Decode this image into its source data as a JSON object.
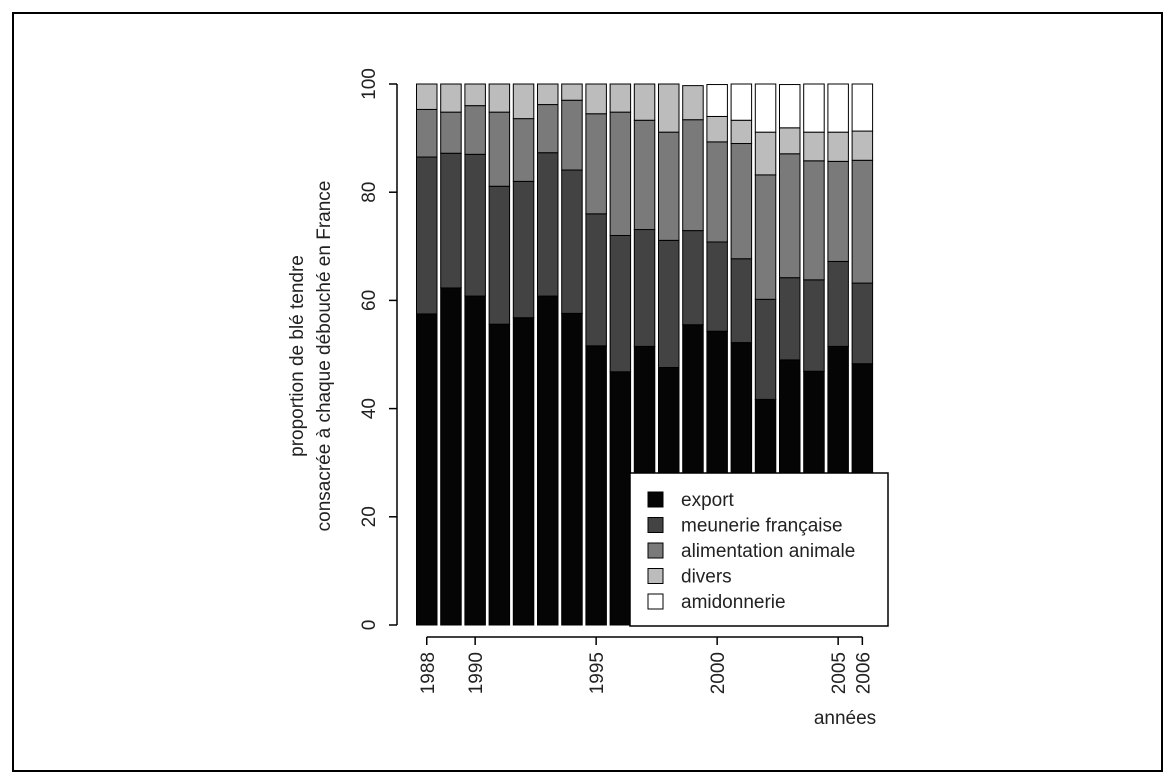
{
  "chart_data": {
    "type": "bar",
    "stacked": true,
    "x": [
      1988,
      1989,
      1990,
      1991,
      1992,
      1993,
      1994,
      1995,
      1996,
      1997,
      1998,
      1999,
      2000,
      2001,
      2002,
      2003,
      2004,
      2005,
      2006
    ],
    "x_tick_labels": [
      "1988",
      "1990",
      "1995",
      "2000",
      "2005",
      "2006"
    ],
    "x_tick_years": [
      1988,
      1990,
      1995,
      2000,
      2005,
      2006
    ],
    "xlabel": "années",
    "ylabel_line1": "proportion de blé tendre",
    "ylabel_line2": "consacrée à chaque débouché en France",
    "ylim": [
      0,
      100
    ],
    "y_ticks": [
      0,
      20,
      40,
      60,
      80,
      100
    ],
    "legend_position": "bottom-right",
    "series": [
      {
        "name": "export",
        "color": "#050505",
        "values": [
          57.5,
          62.3,
          60.8,
          55.6,
          56.8,
          60.8,
          57.6,
          51.6,
          46.8,
          51.5,
          47.6,
          55.5,
          54.3,
          52.2,
          41.7,
          49.0,
          46.9,
          51.5,
          48.3
        ]
      },
      {
        "name": "meunerie française",
        "color": "#434343",
        "values": [
          29.0,
          24.9,
          26.2,
          25.5,
          25.2,
          26.5,
          26.5,
          24.4,
          25.2,
          21.6,
          23.5,
          17.4,
          16.5,
          15.5,
          18.5,
          15.2,
          16.9,
          15.7,
          14.9
        ]
      },
      {
        "name": "alimentation animale",
        "color": "#7a7a7a",
        "values": [
          8.8,
          7.6,
          9.0,
          13.7,
          11.6,
          8.9,
          12.9,
          18.5,
          22.8,
          20.2,
          20.0,
          20.5,
          18.5,
          21.3,
          23.0,
          22.9,
          22.0,
          18.5,
          22.7
        ]
      },
      {
        "name": "divers",
        "color": "#bcbcbc",
        "values": [
          4.7,
          5.2,
          4.0,
          5.2,
          6.4,
          3.8,
          3.0,
          5.5,
          5.2,
          6.7,
          8.9,
          6.3,
          4.7,
          4.3,
          7.9,
          4.8,
          5.3,
          5.4,
          5.4
        ]
      },
      {
        "name": "amidonnerie",
        "color": "#ffffff",
        "values": [
          0,
          0,
          0,
          0,
          0,
          0,
          0,
          0,
          0,
          0,
          0,
          0,
          5.9,
          6.7,
          8.9,
          8.0,
          8.9,
          8.9,
          8.7
        ]
      }
    ]
  }
}
